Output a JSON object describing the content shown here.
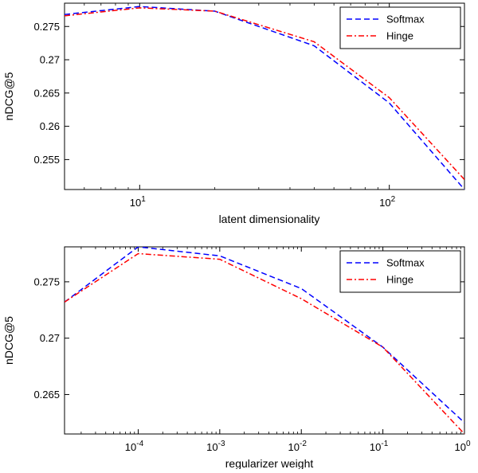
{
  "chart_data": [
    {
      "type": "line",
      "xscale": "log",
      "xlabel": "latent dimensionality",
      "ylabel": "nDCG@5",
      "xlim": [
        5,
        200
      ],
      "ylim": [
        0.2505,
        0.2785
      ],
      "x_ticks": [
        {
          "value": 10,
          "base": "10",
          "exp": "1"
        },
        {
          "value": 100,
          "base": "10",
          "exp": "2"
        }
      ],
      "y_ticks": [
        {
          "value": 0.255,
          "label": "0.255"
        },
        {
          "value": 0.26,
          "label": "0.26"
        },
        {
          "value": 0.265,
          "label": "0.265"
        },
        {
          "value": 0.27,
          "label": "0.27"
        },
        {
          "value": 0.275,
          "label": "0.275"
        }
      ],
      "legend_position": "top-right",
      "series": [
        {
          "name": "Softmax",
          "color": "#0000ff",
          "style": "dashed",
          "x": [
            5,
            10,
            20,
            50,
            100,
            200
          ],
          "y": [
            0.2768,
            0.278,
            0.2773,
            0.2721,
            0.2635,
            0.2505
          ]
        },
        {
          "name": "Hinge",
          "color": "#ff0000",
          "style": "dashdot",
          "x": [
            5,
            10,
            20,
            50,
            100,
            200
          ],
          "y": [
            0.2766,
            0.2778,
            0.2773,
            0.2727,
            0.2643,
            0.252
          ]
        }
      ]
    },
    {
      "type": "line",
      "xscale": "log",
      "xlabel": "regularizer weight",
      "ylabel": "nDCG@5",
      "xlim": [
        1.25e-05,
        1
      ],
      "ylim": [
        0.2615,
        0.2781
      ],
      "x_ticks": [
        {
          "value": 0.0001,
          "base": "10",
          "exp": "-4"
        },
        {
          "value": 0.001,
          "base": "10",
          "exp": "-3"
        },
        {
          "value": 0.01,
          "base": "10",
          "exp": "-2"
        },
        {
          "value": 0.1,
          "base": "10",
          "exp": "-1"
        },
        {
          "value": 1,
          "base": "10",
          "exp": "0"
        }
      ],
      "y_ticks": [
        {
          "value": 0.265,
          "label": "0.265"
        },
        {
          "value": 0.27,
          "label": "0.27"
        },
        {
          "value": 0.275,
          "label": "0.275"
        }
      ],
      "legend_position": "top-right",
      "series": [
        {
          "name": "Softmax",
          "color": "#0000ff",
          "style": "dashed",
          "x": [
            1.25e-05,
            0.0001,
            0.001,
            0.01,
            0.1,
            1
          ],
          "y": [
            0.2732,
            0.2781,
            0.2773,
            0.2744,
            0.2692,
            0.2625
          ]
        },
        {
          "name": "Hinge",
          "color": "#ff0000",
          "style": "dashdot",
          "x": [
            1.25e-05,
            0.0001,
            0.001,
            0.01,
            0.1,
            1
          ],
          "y": [
            0.2732,
            0.2775,
            0.277,
            0.2735,
            0.2692,
            0.2615
          ]
        }
      ]
    }
  ]
}
